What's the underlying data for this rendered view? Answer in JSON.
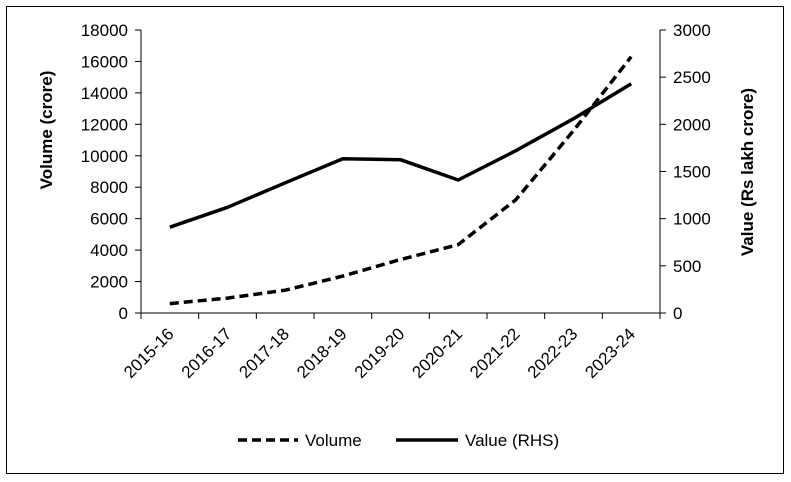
{
  "chart_data": {
    "type": "line",
    "categories": [
      "2015-16",
      "2016-17",
      "2017-18",
      "2018-19",
      "2019-20",
      "2020-21",
      "2021-22",
      "2022-23",
      "2023-24"
    ],
    "series": [
      {
        "name": "Volume",
        "axis": "left",
        "style": "dashed",
        "values": [
          600,
          950,
          1450,
          2350,
          3400,
          4350,
          7200,
          11600,
          16300
        ]
      },
      {
        "name": "Value (RHS)",
        "axis": "right",
        "style": "solid",
        "values": [
          910,
          1120,
          1380,
          1635,
          1625,
          1410,
          1720,
          2060,
          2430
        ]
      }
    ],
    "ylabel": "Volume (crore)",
    "y2label": "Value (Rs lakh crore)",
    "ylim": [
      0,
      18000
    ],
    "y2lim": [
      0,
      3000
    ],
    "yticks": [
      "0",
      "2000",
      "4000",
      "6000",
      "8000",
      "10000",
      "12000",
      "14000",
      "16000",
      "18000"
    ],
    "y2ticks": [
      "0",
      "500",
      "1000",
      "1500",
      "2000",
      "2500",
      "3000"
    ],
    "legend_position": "bottom",
    "grid": false
  }
}
